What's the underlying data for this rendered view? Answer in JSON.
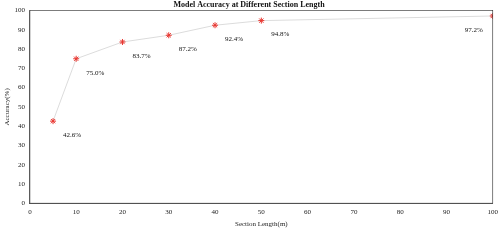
{
  "chart_data": {
    "type": "line",
    "title": "Model Accuracy at Different Section Length",
    "x_label": "Section Length(m)",
    "y_label": "Accuracy(%)",
    "x": [
      5,
      10,
      20,
      30,
      40,
      50,
      100
    ],
    "values": [
      42.6,
      75.0,
      83.7,
      87.2,
      92.4,
      94.8,
      97.2
    ],
    "value_labels": [
      "42.6%",
      "75.0%",
      "83.7%",
      "87.2%",
      "92.4%",
      "94.8%",
      "97.2%"
    ],
    "color": "#e8352f",
    "marker": "star",
    "xlim": [
      0,
      100
    ],
    "xticks": [
      0,
      10,
      20,
      30,
      40,
      50,
      60,
      70,
      80,
      90,
      100
    ],
    "ylim": [
      0,
      100
    ],
    "yticks": [
      0,
      10,
      20,
      30,
      40,
      50,
      60,
      70,
      80,
      90,
      100
    ],
    "grid": false,
    "data_labels": true
  }
}
